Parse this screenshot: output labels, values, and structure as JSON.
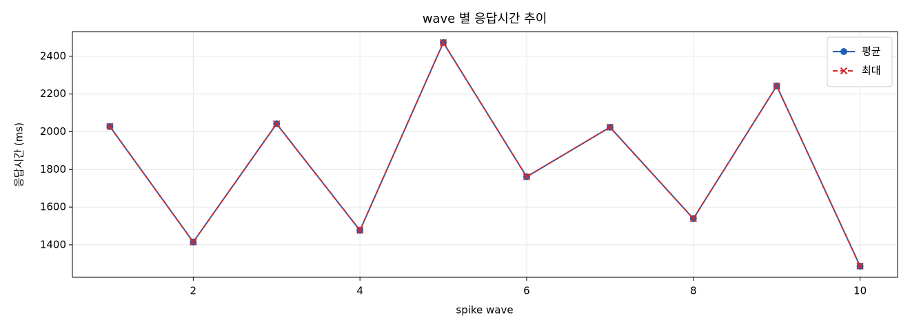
{
  "chart_data": {
    "type": "line",
    "title": "wave 별 응답시간 추이",
    "x_label": "spike wave",
    "y_label": "응답시간 (ms)",
    "x": [
      1,
      2,
      3,
      4,
      5,
      6,
      7,
      8,
      9,
      10
    ],
    "series": [
      {
        "name": "평균",
        "color": "#1f5fb4",
        "marker": "circle",
        "dash": "solid",
        "values": [
          2028,
          1415,
          2042,
          1477,
          2473,
          1761,
          2024,
          1539,
          2243,
          1287
        ]
      },
      {
        "name": "최대",
        "color": "#d62728",
        "marker": "x",
        "dash": "dashed",
        "values": [
          2028,
          1415,
          2042,
          1477,
          2473,
          1761,
          2024,
          1539,
          2243,
          1287
        ]
      }
    ],
    "xlim": [
      0.55,
      10.45
    ],
    "xticks": [
      2,
      4,
      6,
      8,
      10
    ],
    "ylim": [
      1228,
      2531
    ],
    "yticks": [
      1400,
      1600,
      1800,
      2000,
      2200,
      2400
    ],
    "grid": true,
    "legend": "upper right"
  }
}
